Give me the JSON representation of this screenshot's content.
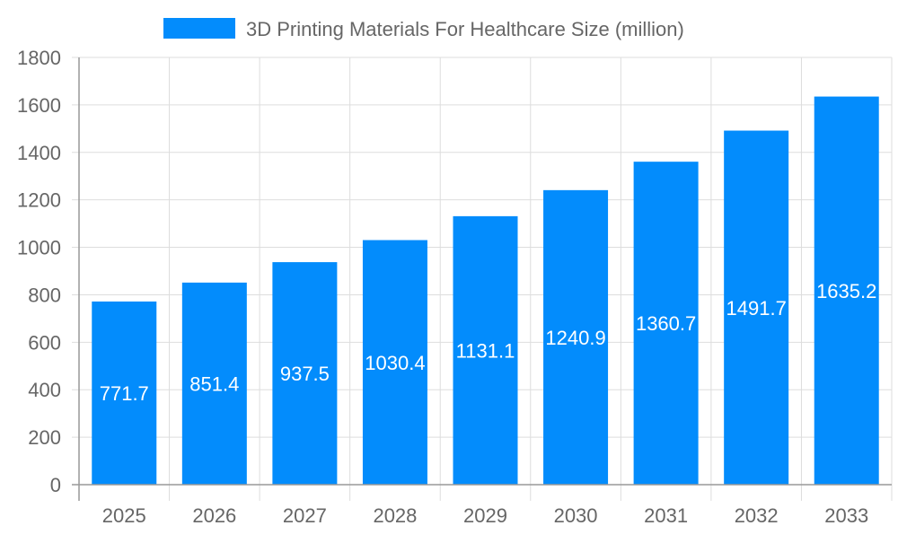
{
  "chart_data": {
    "type": "bar",
    "title": "",
    "xlabel": "",
    "ylabel": "",
    "categories": [
      "2025",
      "2026",
      "2027",
      "2028",
      "2029",
      "2030",
      "2031",
      "2032",
      "2033"
    ],
    "series": [
      {
        "name": "3D Printing Materials For Healthcare Size (million)",
        "values": [
          771.7,
          851.4,
          937.5,
          1030.4,
          1131.1,
          1240.9,
          1360.7,
          1491.7,
          1635.2
        ],
        "data_labels": [
          "771.7",
          "851.4",
          "937.5",
          "1030.4",
          "1131.1",
          "1240.9",
          "1360.7",
          "1491.7",
          "1635.2"
        ],
        "color": "#038cfc"
      }
    ],
    "ylim": [
      0,
      1800
    ],
    "yticks": [
      "0",
      "200",
      "400",
      "600",
      "800",
      "1000",
      "1200",
      "1400",
      "1600",
      "1800"
    ],
    "grid": true,
    "legend_position": "top"
  }
}
